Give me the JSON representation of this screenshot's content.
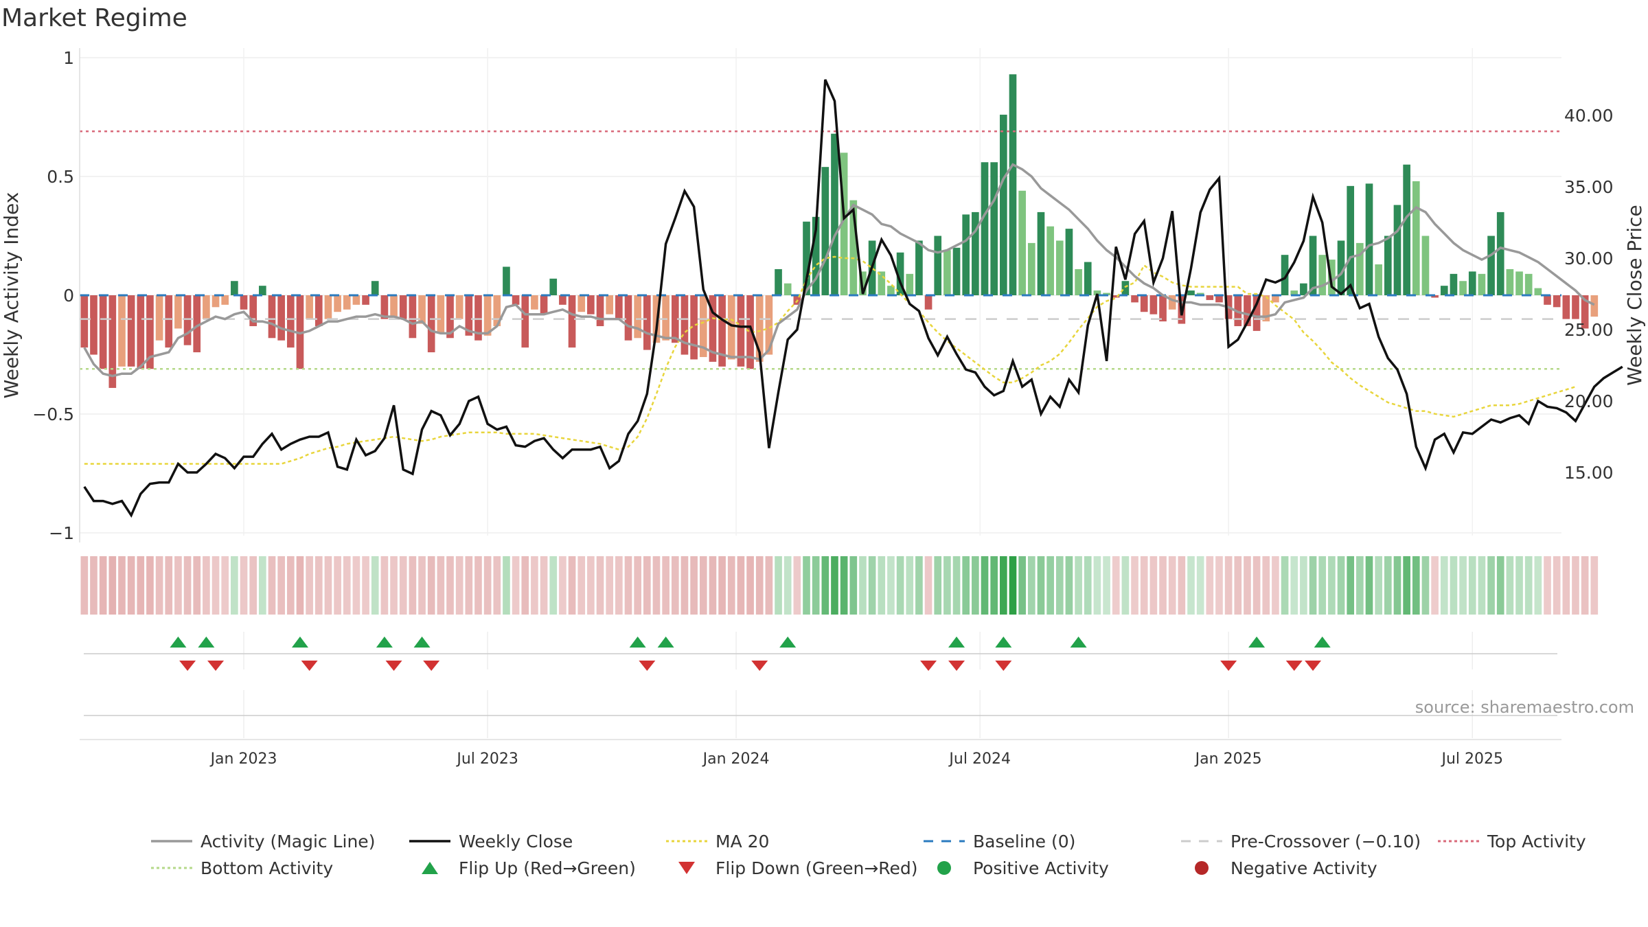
{
  "title": "Market Regime",
  "source_note": "source: sharemaestro.com",
  "colors": {
    "pos_dark": "#2e8b57",
    "pos_light": "#7fc47f",
    "neg_dark": "#c85a5a",
    "neg_light": "#e8a07c",
    "magic": "#999999",
    "close": "#111111",
    "ma20": "#e8d53c",
    "baseline": "#2b7bbf",
    "precross": "#cccccc",
    "top": "#d9697a",
    "bottom": "#b5d98a",
    "flip_up": "#22a24a",
    "flip_down": "#d23232",
    "pos_dot": "#22a24a",
    "neg_dot": "#b52828"
  },
  "legend": [
    {
      "key": "magic",
      "label": "Activity (Magic Line)",
      "style": "line"
    },
    {
      "key": "close",
      "label": "Weekly Close",
      "style": "line"
    },
    {
      "key": "ma20",
      "label": "MA 20",
      "style": "dotted"
    },
    {
      "key": "baseline",
      "label": "Baseline (0)",
      "style": "dashed"
    },
    {
      "key": "precross",
      "label": "Pre-Crossover (−0.10)",
      "style": "dashed"
    },
    {
      "key": "top",
      "label": "Top Activity",
      "style": "dotted"
    },
    {
      "key": "bottom",
      "label": "Bottom Activity",
      "style": "dotted"
    },
    {
      "key": "flip_up",
      "label": "Flip Up (Red→Green)",
      "style": "tri-up"
    },
    {
      "key": "flip_down",
      "label": "Flip Down (Green→Red)",
      "style": "tri-down"
    },
    {
      "key": "pos_dot",
      "label": "Positive Activity",
      "style": "dot"
    },
    {
      "key": "neg_dot",
      "label": "Negative Activity",
      "style": "dot"
    }
  ],
  "chart_data": {
    "type": "bar",
    "title": "Market Regime",
    "ylabel": "Weekly Activity Index",
    "y2label": "Weekly Close Price",
    "ylim": [
      -1,
      1
    ],
    "y2lim": [
      10,
      44.2
    ],
    "yticks": [
      1,
      0.5,
      0,
      -0.5,
      -1
    ],
    "ytick_labels": [
      "1",
      "0.5",
      "0",
      "−0.5",
      "−1"
    ],
    "y2ticks": [
      40,
      35,
      30,
      25,
      20,
      15
    ],
    "y2tick_labels": [
      "40.00",
      "35.00",
      "30.00",
      "25.00",
      "20.00",
      "15.00"
    ],
    "xticks": [
      {
        "label": "Jan 2023",
        "week": 17
      },
      {
        "label": "Jul 2023",
        "week": 43
      },
      {
        "label": "Jan 2024",
        "week": 69.5
      },
      {
        "label": "Jul 2024",
        "week": 95.5
      },
      {
        "label": "Jan 2025",
        "week": 122
      },
      {
        "label": "Jul 2025",
        "week": 148
      }
    ],
    "weeks": 158,
    "reference_lines": {
      "top_activity": 0.69,
      "bottom_activity": -0.31,
      "baseline": 0,
      "pre_crossover": -0.1
    },
    "activity": [
      -0.22,
      -0.25,
      -0.31,
      -0.39,
      -0.3,
      -0.3,
      -0.31,
      -0.31,
      -0.19,
      -0.22,
      -0.14,
      -0.21,
      -0.24,
      -0.1,
      -0.05,
      -0.04,
      0.06,
      -0.06,
      -0.13,
      0.04,
      -0.18,
      -0.19,
      -0.22,
      -0.31,
      -0.1,
      -0.13,
      -0.1,
      -0.07,
      -0.06,
      -0.04,
      -0.04,
      0.06,
      -0.1,
      -0.09,
      -0.1,
      -0.18,
      -0.12,
      -0.24,
      -0.16,
      -0.18,
      -0.1,
      -0.17,
      -0.19,
      -0.17,
      -0.13,
      0.12,
      -0.04,
      -0.22,
      -0.06,
      -0.08,
      0.07,
      -0.04,
      -0.22,
      -0.07,
      -0.08,
      -0.13,
      -0.08,
      -0.1,
      -0.19,
      -0.18,
      -0.23,
      -0.2,
      -0.19,
      -0.2,
      -0.25,
      -0.27,
      -0.26,
      -0.28,
      -0.3,
      -0.27,
      -0.3,
      -0.31,
      -0.28,
      -0.25,
      0.11,
      0.05,
      -0.04,
      0.31,
      0.33,
      0.54,
      0.68,
      0.6,
      0.4,
      0.1,
      0.23,
      0.1,
      0.04,
      0.18,
      0.09,
      0.23,
      -0.06,
      0.25,
      0.19,
      0.2,
      0.34,
      0.35,
      0.56,
      0.56,
      0.76,
      0.93,
      0.44,
      0.22,
      0.35,
      0.29,
      0.23,
      0.28,
      0.11,
      0.14,
      0.02,
      0.01,
      -0.01,
      0.06,
      -0.03,
      -0.07,
      -0.08,
      -0.11,
      -0.06,
      -0.12,
      0.02,
      0.01,
      -0.02,
      -0.03,
      -0.1,
      -0.13,
      -0.13,
      -0.15,
      -0.11,
      -0.03,
      0.17,
      0.02,
      0.05,
      0.25,
      0.17,
      0.15,
      0.23,
      0.46,
      0.22,
      0.47,
      0.13,
      0.25,
      0.38,
      0.55,
      0.48,
      0.25,
      -0.01,
      0.04,
      0.09,
      0.06,
      0.1,
      0.09,
      0.25,
      0.35,
      0.11,
      0.1,
      0.09,
      0.03,
      -0.04,
      -0.05,
      -0.1,
      -0.1,
      -0.14,
      -0.09
    ],
    "magic_line": [
      -0.22,
      -0.29,
      -0.33,
      -0.34,
      -0.33,
      -0.33,
      -0.3,
      -0.26,
      -0.25,
      -0.24,
      -0.18,
      -0.16,
      -0.13,
      -0.11,
      -0.09,
      -0.1,
      -0.08,
      -0.07,
      -0.11,
      -0.11,
      -0.12,
      -0.14,
      -0.15,
      -0.16,
      -0.15,
      -0.13,
      -0.11,
      -0.11,
      -0.1,
      -0.09,
      -0.09,
      -0.08,
      -0.09,
      -0.09,
      -0.1,
      -0.12,
      -0.11,
      -0.15,
      -0.16,
      -0.16,
      -0.13,
      -0.15,
      -0.16,
      -0.16,
      -0.13,
      -0.05,
      -0.04,
      -0.08,
      -0.08,
      -0.08,
      -0.07,
      -0.06,
      -0.08,
      -0.09,
      -0.09,
      -0.1,
      -0.1,
      -0.1,
      -0.13,
      -0.14,
      -0.16,
      -0.17,
      -0.18,
      -0.18,
      -0.2,
      -0.21,
      -0.22,
      -0.24,
      -0.25,
      -0.26,
      -0.26,
      -0.26,
      -0.27,
      -0.23,
      -0.12,
      -0.09,
      -0.06,
      0.02,
      0.07,
      0.15,
      0.25,
      0.32,
      0.38,
      0.36,
      0.34,
      0.3,
      0.29,
      0.26,
      0.24,
      0.22,
      0.19,
      0.18,
      0.19,
      0.21,
      0.23,
      0.27,
      0.34,
      0.4,
      0.49,
      0.55,
      0.53,
      0.5,
      0.45,
      0.42,
      0.39,
      0.36,
      0.32,
      0.28,
      0.23,
      0.19,
      0.16,
      0.12,
      0.08,
      0.05,
      0.03,
      0.0,
      -0.02,
      -0.03,
      -0.03,
      -0.04,
      -0.04,
      -0.04,
      -0.05,
      -0.07,
      -0.08,
      -0.09,
      -0.09,
      -0.08,
      -0.03,
      -0.02,
      -0.01,
      0.03,
      0.04,
      0.06,
      0.09,
      0.16,
      0.17,
      0.21,
      0.22,
      0.24,
      0.27,
      0.33,
      0.37,
      0.35,
      0.3,
      0.26,
      0.22,
      0.19,
      0.17,
      0.15,
      0.17,
      0.2,
      0.19,
      0.18,
      0.16,
      0.14,
      0.11,
      0.08,
      0.05,
      0.02,
      -0.02,
      -0.04
    ],
    "weekly_close": [
      14.0,
      13.0,
      13.0,
      12.8,
      13.0,
      12.0,
      13.5,
      14.2,
      14.3,
      14.3,
      15.6,
      15.0,
      15.0,
      15.6,
      16.3,
      16.0,
      15.3,
      16.1,
      16.1,
      17.0,
      17.7,
      16.6,
      17.0,
      17.3,
      17.5,
      17.5,
      17.8,
      15.4,
      15.2,
      17.3,
      16.2,
      16.5,
      17.4,
      19.7,
      15.2,
      14.9,
      18.0,
      19.3,
      19.0,
      17.6,
      18.4,
      20.0,
      20.3,
      18.4,
      18.0,
      18.2,
      16.9,
      16.8,
      17.2,
      17.4,
      16.6,
      16.0,
      16.6,
      16.6,
      16.6,
      16.8,
      15.3,
      15.8,
      17.7,
      18.6,
      20.5,
      25.0,
      31.0,
      32.8,
      34.7,
      33.6,
      27.8,
      26.2,
      25.7,
      25.3,
      25.2,
      25.2,
      23.4,
      16.7,
      20.6,
      24.3,
      25.0,
      28.5,
      32.0,
      42.5,
      41.0,
      32.8,
      33.4,
      27.5,
      29.4,
      31.3,
      30.2,
      28.3,
      26.8,
      26.3,
      24.4,
      23.2,
      24.5,
      23.3,
      22.2,
      22.0,
      21.0,
      20.4,
      20.7,
      22.8,
      21.0,
      21.5,
      19.1,
      20.3,
      19.6,
      21.5,
      20.6,
      25.3,
      27.5,
      22.8,
      30.8,
      28.5,
      31.7,
      32.6,
      28.3,
      30.0,
      33.3,
      26.0,
      29.3,
      33.2,
      34.8,
      35.6,
      23.8,
      24.3,
      25.5,
      26.8,
      28.5,
      28.3,
      28.6,
      29.7,
      31.2,
      34.3,
      32.5,
      28.0,
      27.5,
      28.1,
      26.5,
      26.8,
      24.5,
      23.0,
      22.2,
      20.5,
      16.8,
      15.3,
      17.3,
      17.7,
      16.4,
      17.8,
      17.7,
      18.2,
      18.7,
      18.5,
      18.8,
      19.0,
      18.4,
      20.0,
      19.6,
      19.5,
      19.2,
      18.6,
      19.8,
      21.0,
      21.6,
      22.0,
      22.4
    ],
    "ma20": [
      15.6,
      15.6,
      15.6,
      15.6,
      15.6,
      15.6,
      15.6,
      15.6,
      15.6,
      15.6,
      15.6,
      15.6,
      15.6,
      15.6,
      15.6,
      15.6,
      15.6,
      15.6,
      15.6,
      15.6,
      15.6,
      15.6,
      15.8,
      16.0,
      16.3,
      16.5,
      16.7,
      16.8,
      17.0,
      17.1,
      17.2,
      17.3,
      17.4,
      17.5,
      17.4,
      17.3,
      17.2,
      17.3,
      17.5,
      17.6,
      17.7,
      17.8,
      17.8,
      17.8,
      17.8,
      17.7,
      17.7,
      17.7,
      17.7,
      17.6,
      17.5,
      17.4,
      17.3,
      17.2,
      17.1,
      17.0,
      16.8,
      16.6,
      16.8,
      17.5,
      18.8,
      20.5,
      22.3,
      23.8,
      24.8,
      25.3,
      25.5,
      25.8,
      25.7,
      25.7,
      25.3,
      24.8,
      24.9,
      25.1,
      25.5,
      26.3,
      27.0,
      28.5,
      29.5,
      30.0,
      30.1,
      30.0,
      30.0,
      29.8,
      29.3,
      28.8,
      28.2,
      27.5,
      26.8,
      26.3,
      25.5,
      24.8,
      24.2,
      23.7,
      23.2,
      22.7,
      22.2,
      21.7,
      21.3,
      21.3,
      21.6,
      22.0,
      22.5,
      22.8,
      23.3,
      24.1,
      25.0,
      25.8,
      26.6,
      27.0,
      27.2,
      28.0,
      28.3,
      29.5,
      29.0,
      28.7,
      28.3,
      28.1,
      28.0,
      28.0,
      28.0,
      28.0,
      28.0,
      28.0,
      27.5,
      27.5,
      27.3,
      26.7,
      26.2,
      25.7,
      24.8,
      24.2,
      23.5,
      22.7,
      22.2,
      21.6,
      21.1,
      20.7,
      20.3,
      19.9,
      19.7,
      19.5,
      19.3,
      19.3,
      19.1,
      19.0,
      18.9,
      19.1,
      19.3,
      19.5,
      19.7,
      19.7,
      19.7,
      19.8,
      20.0,
      20.2,
      20.4,
      20.6,
      20.8,
      21.0
    ],
    "flip_up_weeks": [
      10,
      13,
      23,
      32,
      36,
      59,
      62,
      75,
      93,
      98,
      106,
      125,
      132
    ],
    "flip_down_weeks": [
      11,
      14,
      24,
      33,
      37,
      60,
      72,
      90,
      93,
      98,
      122,
      129,
      131
    ]
  }
}
